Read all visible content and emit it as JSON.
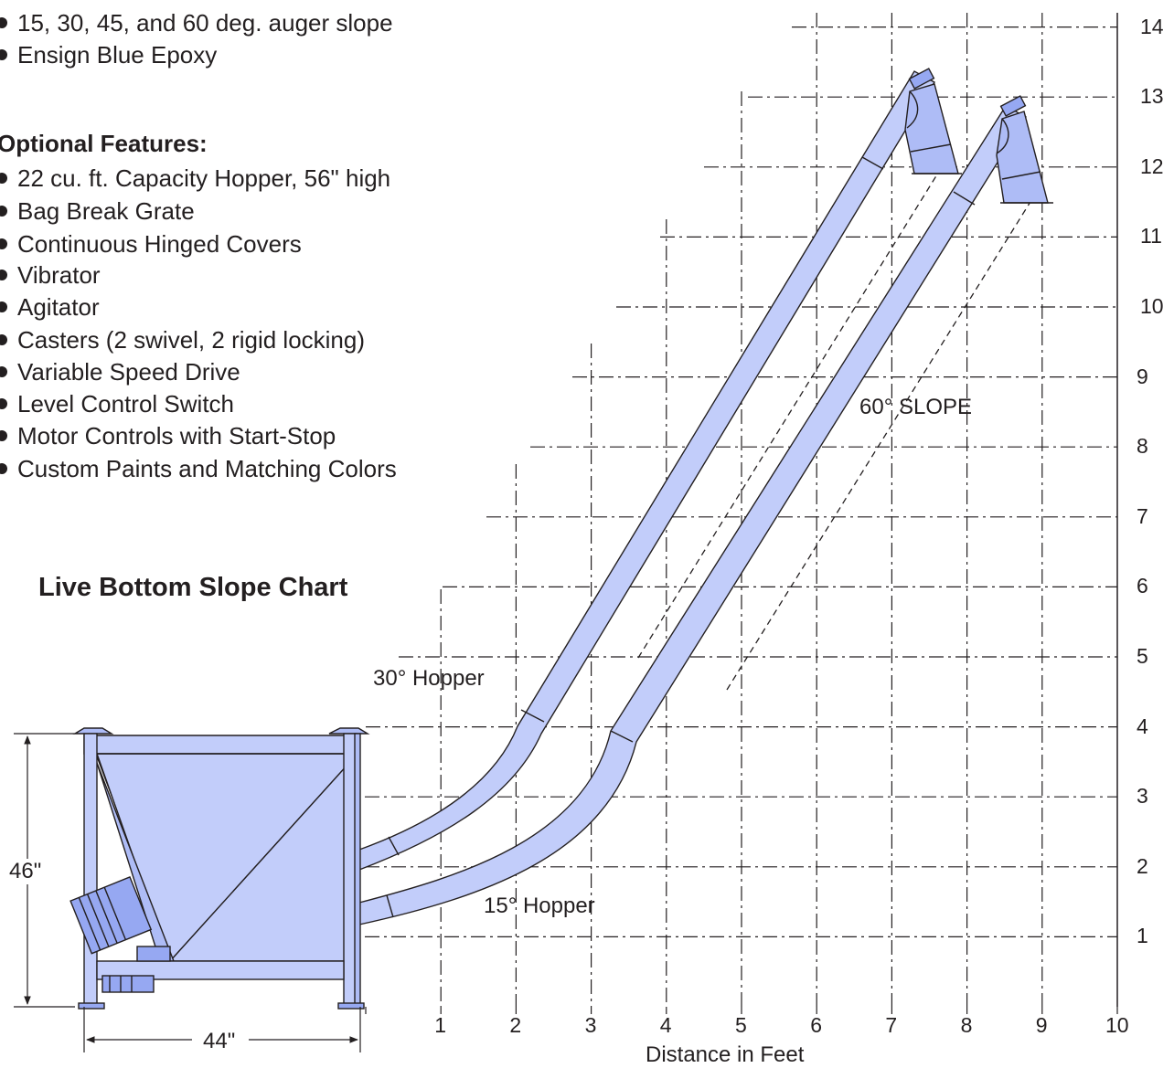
{
  "standard_features": {
    "items": [
      "15, 30, 45, and 60 deg. auger slope",
      "Ensign Blue Epoxy"
    ]
  },
  "optional_features": {
    "heading": "Optional Features:",
    "items": [
      "22 cu. ft. Capacity Hopper, 56\" high",
      "Bag Break Grate",
      "Continuous Hinged Covers",
      "Vibrator",
      "Agitator",
      "Casters (2 swivel, 2 rigid locking)",
      "Variable Speed Drive",
      "Level Control Switch",
      "Motor Controls with Start-Stop",
      "Custom Paints and Matching Colors"
    ]
  },
  "chart": {
    "title": "Live Bottom Slope Chart",
    "x_axis_label": "Distance in Feet",
    "x_ticks": [
      "1",
      "2",
      "3",
      "4",
      "5",
      "6",
      "7",
      "8",
      "9",
      "10"
    ],
    "y_ticks": [
      "1",
      "2",
      "3",
      "4",
      "5",
      "6",
      "7",
      "8",
      "9",
      "10",
      "11",
      "12",
      "13",
      "14"
    ],
    "labels": {
      "slope": "60°  SLOPE",
      "hopper_30": "30° Hopper",
      "hopper_15": "15° Hopper"
    },
    "dimensions": {
      "height": "46\"",
      "width": "44\""
    }
  },
  "colors": {
    "fill": "#c2cdfa",
    "fill_dark": "#96a8f2",
    "stroke": "#231f20"
  }
}
